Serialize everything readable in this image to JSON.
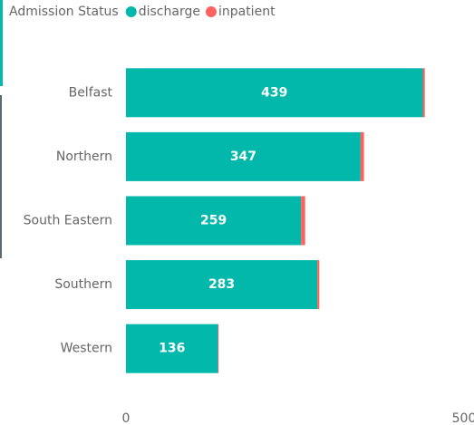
{
  "chart_data": {
    "type": "bar",
    "orientation": "horizontal",
    "stacked": true,
    "legend_title": "Admission Status",
    "categories": [
      "Belfast",
      "Northern",
      "South Eastern",
      "Southern",
      "Western"
    ],
    "series": [
      {
        "name": "discharge",
        "color": "#01b8aa",
        "values": [
          439,
          347,
          259,
          283,
          136
        ]
      },
      {
        "name": "inpatient",
        "color": "#fd625e",
        "values": [
          3,
          5,
          6,
          3,
          1
        ]
      }
    ],
    "xlim": [
      0,
      500
    ],
    "xticks": [
      0,
      500
    ],
    "legend": "top-left"
  }
}
